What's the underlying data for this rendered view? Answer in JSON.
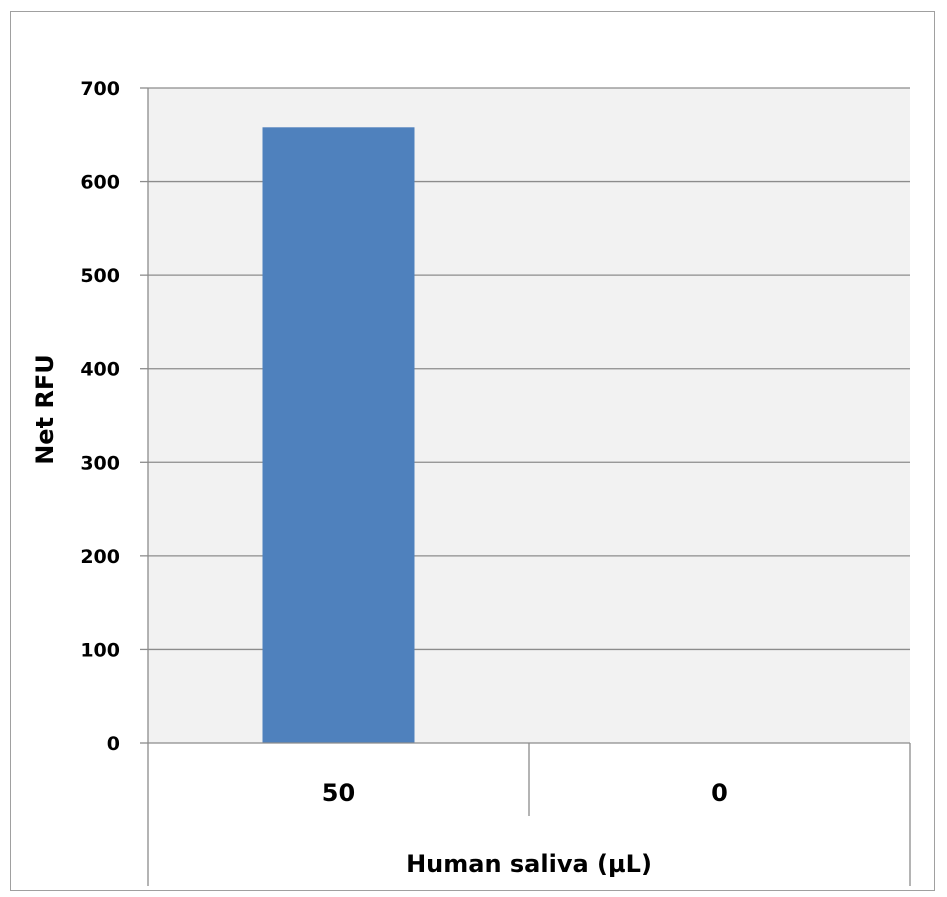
{
  "chart_data": {
    "type": "bar",
    "categories": [
      "50",
      "0"
    ],
    "values": [
      658,
      0
    ],
    "xlabel": "Human saliva (µL)",
    "ylabel": "Net RFU",
    "ylim": [
      0,
      700
    ],
    "yticks": [
      0,
      100,
      200,
      300,
      400,
      500,
      600,
      700
    ],
    "grid": true,
    "legend": "none",
    "colors": {
      "bar": "#4f81bd",
      "plot_background": "#f2f2f2",
      "gridline": "#8c8c8c",
      "axis": "#8c8c8c"
    }
  }
}
